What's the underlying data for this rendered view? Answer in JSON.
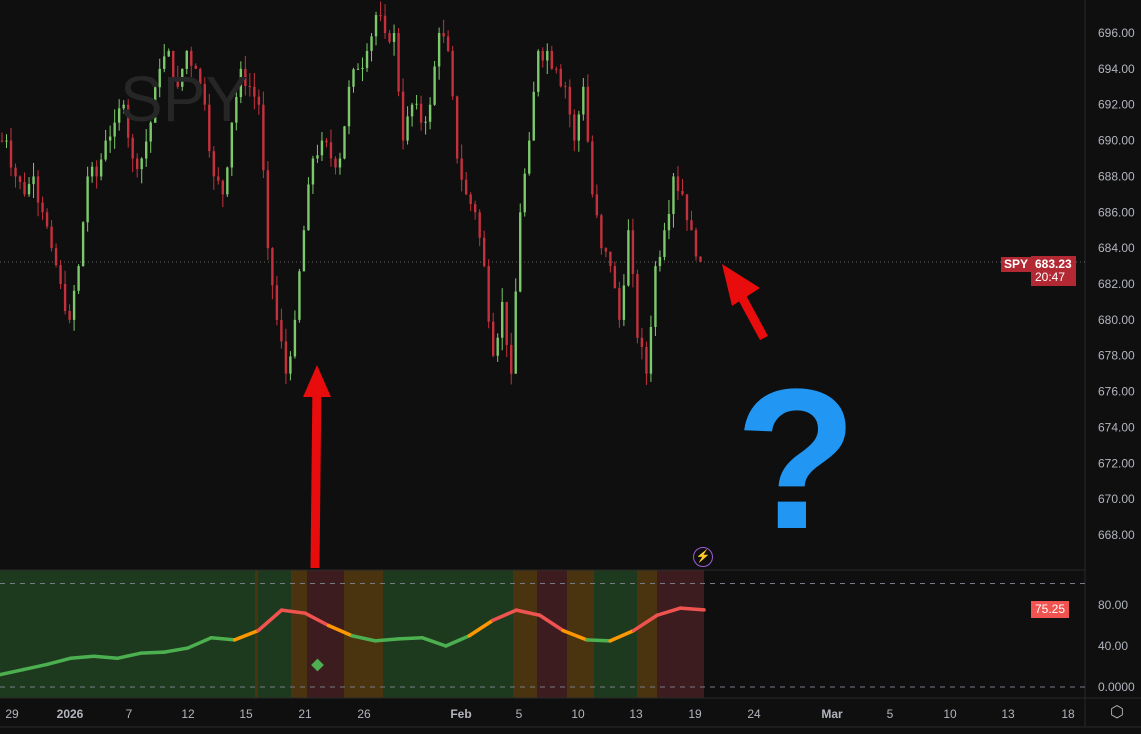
{
  "symbol": "SPY",
  "watermark": "SPY",
  "price_tag": {
    "symbol": "SPY",
    "price": "683.23",
    "countdown": "20:47",
    "color": "#b22833"
  },
  "indicator_tag": {
    "value": "75.25",
    "color": "#f05350"
  },
  "annotation": {
    "question": "?",
    "question_color": "#2196f3",
    "arrow_color": "#e80c0c"
  },
  "colors": {
    "up": "#7cc96b",
    "down": "#c4313d",
    "bg": "#0f0f0f",
    "band_green": "#1e3a1e",
    "band_orange": "#4a3410",
    "band_red": "#3d1c20"
  },
  "chart_data": [
    {
      "type": "candlestick",
      "title": "SPY",
      "ylim": [
        666,
        698
      ],
      "yticks": [
        "696.00",
        "694.00",
        "692.00",
        "690.00",
        "688.00",
        "686.00",
        "684.00",
        "682.00",
        "680.00",
        "678.00",
        "676.00",
        "674.00",
        "672.00",
        "670.00",
        "668.00"
      ],
      "xticks": [
        "29",
        "2026",
        "7",
        "12",
        "15",
        "21",
        "26",
        "Feb",
        "5",
        "10",
        "13",
        "19",
        "24",
        "Mar",
        "5",
        "10",
        "13",
        "18"
      ],
      "closes": [
        690,
        688,
        687,
        688,
        686,
        684,
        682,
        680,
        683,
        688,
        688,
        690,
        691,
        692,
        689,
        689,
        691,
        694,
        695,
        693,
        695,
        694,
        692,
        688,
        687,
        691,
        694,
        693,
        692,
        684,
        680,
        677,
        680,
        685,
        689,
        690,
        689,
        689,
        693,
        694,
        695,
        697,
        696,
        696,
        690,
        692,
        691,
        692,
        696,
        695,
        689,
        687,
        686,
        683,
        678,
        681,
        677,
        686,
        690,
        695,
        695,
        694,
        693,
        690,
        693,
        687,
        684,
        683,
        680,
        685,
        679,
        677,
        683,
        685,
        688,
        687,
        685,
        683.23
      ],
      "last_price": 683.23
    },
    {
      "type": "line",
      "ylim": [
        0,
        100
      ],
      "yticks": [
        "80.00",
        "40.00",
        "0.0000"
      ],
      "last_value": 75.25,
      "values": [
        12,
        17,
        22,
        28,
        30,
        28,
        33,
        34,
        38,
        48,
        46,
        55,
        75,
        72,
        60,
        50,
        45,
        47,
        48,
        40,
        50,
        65,
        75,
        70,
        55,
        46,
        45,
        55,
        70,
        77,
        75.25
      ],
      "regimes": [
        "green",
        "orange",
        "green",
        "orange",
        "red",
        "orange",
        "green",
        "orange",
        "red",
        "orange",
        "green",
        "orange",
        "red"
      ],
      "signal_marker": {
        "shape": "diamond",
        "value": 21,
        "date": "21"
      }
    }
  ]
}
